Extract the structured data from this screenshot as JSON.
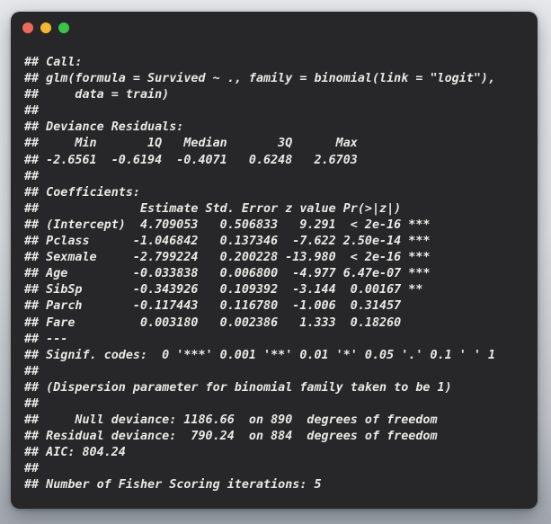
{
  "window": {
    "kind": "terminal-console",
    "controls": {
      "close_color": "#ee6a5f",
      "minimize_color": "#f3b92e",
      "zoom_color": "#36c648"
    },
    "console": {
      "lines": [
        "## Call:",
        "## glm(formula = Survived ~ ., family = binomial(link = \"logit\"),",
        "##     data = train)",
        "##",
        "## Deviance Residuals:",
        "##     Min       1Q   Median       3Q      Max",
        "## -2.6561  -0.6194  -0.4071   0.6248   2.6703",
        "##",
        "## Coefficients:",
        "##              Estimate Std. Error z value Pr(>|z|)",
        "## (Intercept)  4.709053   0.506833   9.291  < 2e-16 ***",
        "## Pclass      -1.046842   0.137346  -7.622 2.50e-14 ***",
        "## Sexmale     -2.799224   0.200228 -13.980  < 2e-16 ***",
        "## Age         -0.033838   0.006800  -4.977 6.47e-07 ***",
        "## SibSp       -0.343926   0.109392  -3.144  0.00167 **",
        "## Parch       -0.117443   0.116780  -1.006  0.31457",
        "## Fare         0.003180   0.002386   1.333  0.18260",
        "## ---",
        "## Signif. codes:  0 '***' 0.001 '**' 0.01 '*' 0.05 '.' 0.1 ' ' 1",
        "##",
        "## (Dispersion parameter for binomial family taken to be 1)",
        "##",
        "##     Null deviance: 1186.66  on 890  degrees of freedom",
        "## Residual deviance:  790.24  on 884  degrees of freedom",
        "## AIC: 804.24",
        "##",
        "## Number of Fisher Scoring iterations: 5"
      ]
    }
  },
  "colors": {
    "window_background": "#272729",
    "console_text": "#e9e8e5",
    "desktop_top": "#e6e7ea",
    "desktop_bottom": "#a2a7b0"
  }
}
